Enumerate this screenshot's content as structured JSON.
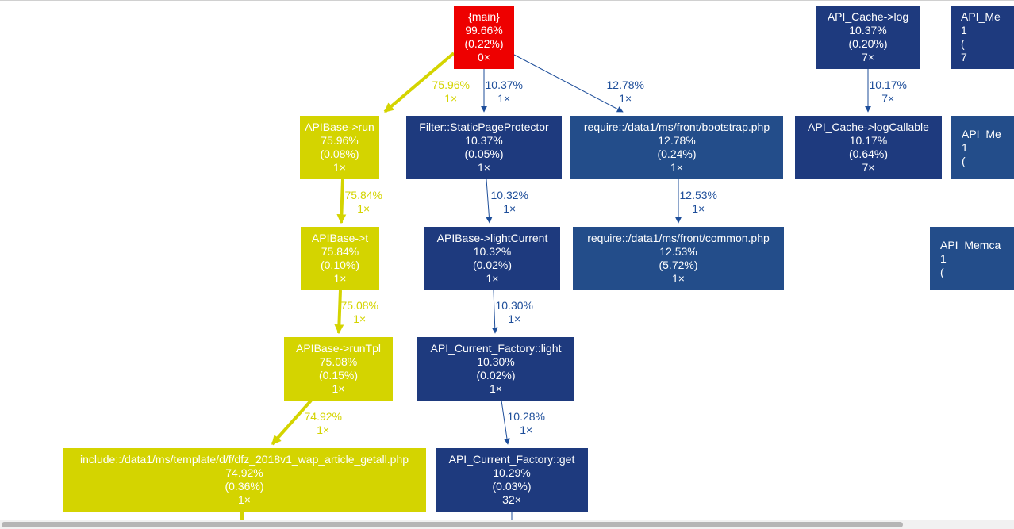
{
  "colors": {
    "hot": "#ee0000",
    "warm": "#d4d400",
    "cool": "#1e3a7e",
    "cool2": "#234d8a",
    "edge_warm": "#d4d400",
    "edge_cool": "#1e4e9a"
  },
  "nodes": [
    {
      "id": "main",
      "lines": [
        "{main}",
        "99.66%",
        "(0.22%)",
        "0×"
      ],
      "tone": "hot"
    },
    {
      "id": "apibase-run",
      "lines": [
        "APIBase->run",
        "75.96%",
        "(0.08%)",
        "1×"
      ],
      "tone": "warm"
    },
    {
      "id": "apibase-t",
      "lines": [
        "APIBase->t",
        "75.84%",
        "(0.10%)",
        "1×"
      ],
      "tone": "warm"
    },
    {
      "id": "apibase-runtpl",
      "lines": [
        "APIBase->runTpl",
        "75.08%",
        "(0.15%)",
        "1×"
      ],
      "tone": "warm"
    },
    {
      "id": "include-template",
      "lines": [
        "include::/data1/ms/template/d/f/dfz_2018v1_wap_article_getall.php",
        "74.92%",
        "(0.36%)",
        "1×"
      ],
      "tone": "warm"
    },
    {
      "id": "filter-static",
      "lines": [
        "Filter::StaticPageProtector",
        "10.37%",
        "(0.05%)",
        "1×"
      ],
      "tone": "cool"
    },
    {
      "id": "apibase-lightcurrent",
      "lines": [
        "APIBase->lightCurrent",
        "10.32%",
        "(0.02%)",
        "1×"
      ],
      "tone": "cool"
    },
    {
      "id": "api-current-light",
      "lines": [
        "API_Current_Factory::light",
        "10.30%",
        "(0.02%)",
        "1×"
      ],
      "tone": "cool"
    },
    {
      "id": "api-current-get",
      "lines": [
        "API_Current_Factory::get",
        "10.29%",
        "(0.03%)",
        "32×"
      ],
      "tone": "cool"
    },
    {
      "id": "require-bootstrap",
      "lines": [
        "require::/data1/ms/front/bootstrap.php",
        "12.78%",
        "(0.24%)",
        "1×"
      ],
      "tone": "cool2"
    },
    {
      "id": "require-common",
      "lines": [
        "require::/data1/ms/front/common.php",
        "12.53%",
        "(5.72%)",
        "1×"
      ],
      "tone": "cool2"
    },
    {
      "id": "api-cache-log",
      "lines": [
        "API_Cache->log",
        "10.37%",
        "(0.20%)",
        "7×"
      ],
      "tone": "cool"
    },
    {
      "id": "api-cache-logcallable",
      "lines": [
        "API_Cache->logCallable",
        "10.17%",
        "(0.64%)",
        "7×"
      ],
      "tone": "cool"
    },
    {
      "id": "partial-me-1",
      "lines": [
        "API_Me",
        "1",
        "(",
        "7"
      ],
      "tone": "cool"
    },
    {
      "id": "partial-me-2",
      "lines": [
        "API_Me",
        "1",
        "(",
        ""
      ],
      "tone": "cool2"
    },
    {
      "id": "partial-memca",
      "lines": [
        "API_Memca",
        "1",
        "(",
        ""
      ],
      "tone": "cool2"
    }
  ],
  "edges": [
    {
      "id": "main-to-run",
      "labels": [
        "75.96%",
        "1×"
      ],
      "tone": "warm"
    },
    {
      "id": "main-to-filter",
      "labels": [
        "10.37%",
        "1×"
      ],
      "tone": "cool"
    },
    {
      "id": "main-to-bootstrap",
      "labels": [
        "12.78%",
        "1×"
      ],
      "tone": "cool"
    },
    {
      "id": "run-to-t",
      "labels": [
        "75.84%",
        "1×"
      ],
      "tone": "warm"
    },
    {
      "id": "t-to-runtpl",
      "labels": [
        "75.08%",
        "1×"
      ],
      "tone": "warm"
    },
    {
      "id": "runtpl-to-include",
      "labels": [
        "74.92%",
        "1×"
      ],
      "tone": "warm"
    },
    {
      "id": "filter-to-lightcurrent",
      "labels": [
        "10.32%",
        "1×"
      ],
      "tone": "cool"
    },
    {
      "id": "lightcurrent-to-light",
      "labels": [
        "10.30%",
        "1×"
      ],
      "tone": "cool"
    },
    {
      "id": "light-to-get",
      "labels": [
        "10.28%",
        "1×"
      ],
      "tone": "cool"
    },
    {
      "id": "bootstrap-to-common",
      "labels": [
        "12.53%",
        "1×"
      ],
      "tone": "cool"
    },
    {
      "id": "log-to-logcallable",
      "labels": [
        "10.17%",
        "7×"
      ],
      "tone": "cool"
    }
  ]
}
